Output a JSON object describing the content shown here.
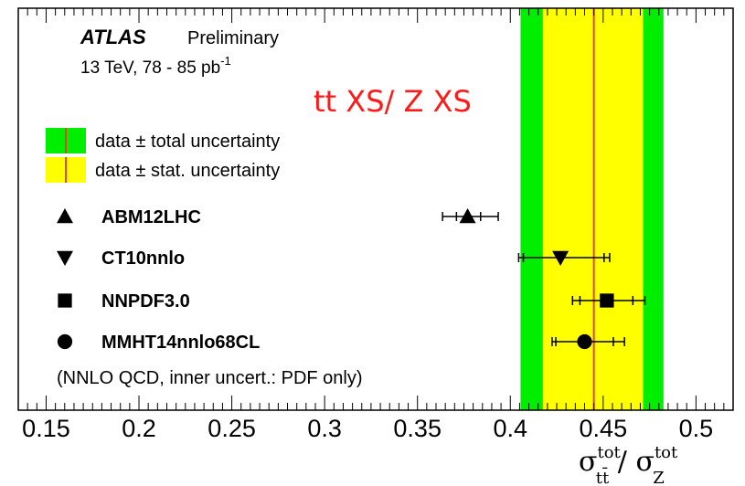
{
  "chart_data": {
    "type": "scatter",
    "title": "tt XS/ Z XS",
    "experiment": "ATLAS",
    "experiment_status": "Preliminary",
    "energy_label": "13 TeV, 78 - 85 pb",
    "energy_label_sup": "-1",
    "xlabel": {
      "sym": "σ",
      "sup": "tot",
      "num_sub": "tt̄",
      "sep": " / ",
      "den_sub": "Z"
    },
    "xlim": [
      0.135,
      0.52
    ],
    "xticks": [
      "0.15",
      "0.2",
      "0.25",
      "0.3",
      "0.35",
      "0.4",
      "0.45",
      "0.5"
    ],
    "xtick_values": [
      0.15,
      0.2,
      0.25,
      0.3,
      0.35,
      0.4,
      0.45,
      0.5
    ],
    "measurement": {
      "value": 0.445,
      "total_band": [
        0.4055,
        0.4825
      ],
      "stat_band": [
        0.4175,
        0.4715
      ],
      "colors": {
        "total": "#00ee00",
        "stat": "#ffff00",
        "line": "#e0452e"
      }
    },
    "legend": [
      {
        "label": "data ± total uncertainty",
        "band": "total"
      },
      {
        "label": "data ± stat. uncertainty",
        "band": "stat"
      }
    ],
    "predictions": [
      {
        "name": "ABM12LHC",
        "marker": "triangle-up",
        "value": 0.377,
        "inner": [
          0.371,
          0.384
        ],
        "outer": [
          0.3635,
          0.3935
        ]
      },
      {
        "name": "CT10nnlo",
        "marker": "triangle-down",
        "value": 0.427,
        "inner": [
          0.407,
          0.4505
        ],
        "outer": [
          0.4045,
          0.4535
        ]
      },
      {
        "name": "NNPDF3.0",
        "marker": "square",
        "value": 0.452,
        "inner": [
          0.4375,
          0.466
        ],
        "outer": [
          0.4335,
          0.4725
        ]
      },
      {
        "name": "MMHT14nnlo68CL",
        "marker": "circle",
        "value": 0.44,
        "inner": [
          0.4245,
          0.4555
        ],
        "outer": [
          0.4225,
          0.4615
        ]
      }
    ],
    "note": "(NNLO QCD, inner uncert.: PDF only)",
    "grid": false
  }
}
